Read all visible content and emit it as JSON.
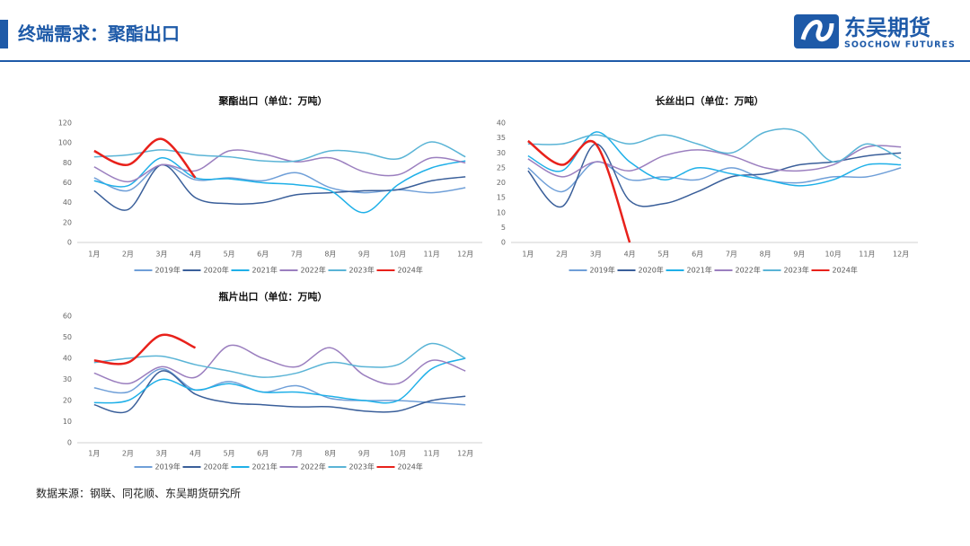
{
  "header": {
    "title": "终端需求：聚酯出口"
  },
  "logo": {
    "name": "东吴期货",
    "english": "SOOCHOW FUTURES"
  },
  "source": "数据来源：钢联、同花顺、东吴期货研究所",
  "chart_data": [
    {
      "type": "line",
      "title": "聚酯出口（单位：万吨）",
      "categories": [
        "1月",
        "2月",
        "3月",
        "4月",
        "5月",
        "6月",
        "7月",
        "8月",
        "9月",
        "10月",
        "11月",
        "12月"
      ],
      "ylim": [
        0,
        120
      ],
      "yticks": [
        0,
        20,
        40,
        60,
        80,
        100,
        120
      ],
      "smooth": true,
      "legend": "bottom",
      "series": [
        {
          "name": "2019年",
          "color": "#6f9fd8",
          "values": [
            65,
            52,
            78,
            63,
            65,
            62,
            70,
            55,
            50,
            53,
            50,
            55
          ]
        },
        {
          "name": "2020年",
          "color": "#3a5f9a",
          "values": [
            52,
            33,
            78,
            45,
            39,
            40,
            48,
            50,
            52,
            53,
            62,
            66
          ]
        },
        {
          "name": "2021年",
          "color": "#1fb0e8",
          "values": [
            62,
            57,
            85,
            65,
            64,
            60,
            58,
            52,
            30,
            58,
            75,
            82
          ]
        },
        {
          "name": "2022年",
          "color": "#9b7fbf",
          "values": [
            76,
            61,
            78,
            72,
            92,
            89,
            81,
            85,
            71,
            68,
            85,
            80
          ]
        },
        {
          "name": "2023年",
          "color": "#5ab4d6",
          "values": [
            86,
            88,
            93,
            88,
            86,
            82,
            82,
            92,
            90,
            84,
            101,
            86
          ]
        },
        {
          "name": "2024年",
          "color": "#e8211b",
          "values": [
            92,
            78,
            104,
            65,
            null,
            null,
            null,
            null,
            null,
            null,
            null,
            null
          ]
        }
      ]
    },
    {
      "type": "line",
      "title": "长丝出口（单位：万吨）",
      "categories": [
        "1月",
        "2月",
        "3月",
        "4月",
        "5月",
        "6月",
        "7月",
        "8月",
        "9月",
        "10月",
        "11月",
        "12月"
      ],
      "ylim": [
        0,
        40
      ],
      "yticks": [
        0,
        5,
        10,
        15,
        20,
        25,
        30,
        35,
        40
      ],
      "smooth": true,
      "legend": "bottom",
      "series": [
        {
          "name": "2019年",
          "color": "#6f9fd8",
          "values": [
            25,
            17,
            27,
            21,
            22,
            21,
            25,
            21,
            20,
            22,
            22,
            25
          ]
        },
        {
          "name": "2020年",
          "color": "#3a5f9a",
          "values": [
            24,
            12,
            33,
            14,
            13,
            17,
            22,
            23,
            26,
            27,
            29,
            30
          ]
        },
        {
          "name": "2021年",
          "color": "#1fb0e8",
          "values": [
            29,
            24,
            37,
            27,
            21,
            25,
            23,
            21,
            19,
            21,
            26,
            26
          ]
        },
        {
          "name": "2022年",
          "color": "#9b7fbf",
          "values": [
            28,
            22,
            27,
            24,
            29,
            31,
            29,
            25,
            24,
            26,
            32,
            32
          ]
        },
        {
          "name": "2023年",
          "color": "#5ab4d6",
          "values": [
            33,
            33,
            36,
            33,
            36,
            33,
            30,
            37,
            37,
            27,
            33,
            28
          ]
        },
        {
          "name": "2024年",
          "color": "#e8211b",
          "values": [
            34,
            26,
            33,
            0,
            null,
            null,
            null,
            null,
            null,
            null,
            null,
            null
          ]
        }
      ]
    },
    {
      "type": "line",
      "title": "瓶片出口（单位：万吨）",
      "categories": [
        "1月",
        "2月",
        "3月",
        "4月",
        "5月",
        "6月",
        "7月",
        "8月",
        "9月",
        "10月",
        "11月",
        "12月"
      ],
      "ylim": [
        0,
        60
      ],
      "yticks": [
        0,
        10,
        20,
        30,
        40,
        50,
        60
      ],
      "smooth": true,
      "legend": "bottom",
      "series": [
        {
          "name": "2019年",
          "color": "#6f9fd8",
          "values": [
            26,
            24,
            35,
            25,
            29,
            24,
            27,
            21,
            20,
            20,
            19,
            18
          ]
        },
        {
          "name": "2020年",
          "color": "#3a5f9a",
          "values": [
            18,
            15,
            34,
            23,
            19,
            18,
            17,
            17,
            15,
            15,
            20,
            22
          ]
        },
        {
          "name": "2021年",
          "color": "#1fb0e8",
          "values": [
            19,
            20,
            30,
            25,
            28,
            24,
            24,
            22,
            20,
            20,
            35,
            40
          ]
        },
        {
          "name": "2022年",
          "color": "#9b7fbf",
          "values": [
            33,
            28,
            36,
            31,
            46,
            40,
            36,
            45,
            32,
            28,
            39,
            34
          ]
        },
        {
          "name": "2023年",
          "color": "#5ab4d6",
          "values": [
            38,
            40,
            41,
            37,
            34,
            31,
            33,
            38,
            36,
            37,
            47,
            40
          ]
        },
        {
          "name": "2024年",
          "color": "#e8211b",
          "values": [
            39,
            38,
            51,
            45,
            null,
            null,
            null,
            null,
            null,
            null,
            null,
            null
          ]
        }
      ]
    }
  ]
}
